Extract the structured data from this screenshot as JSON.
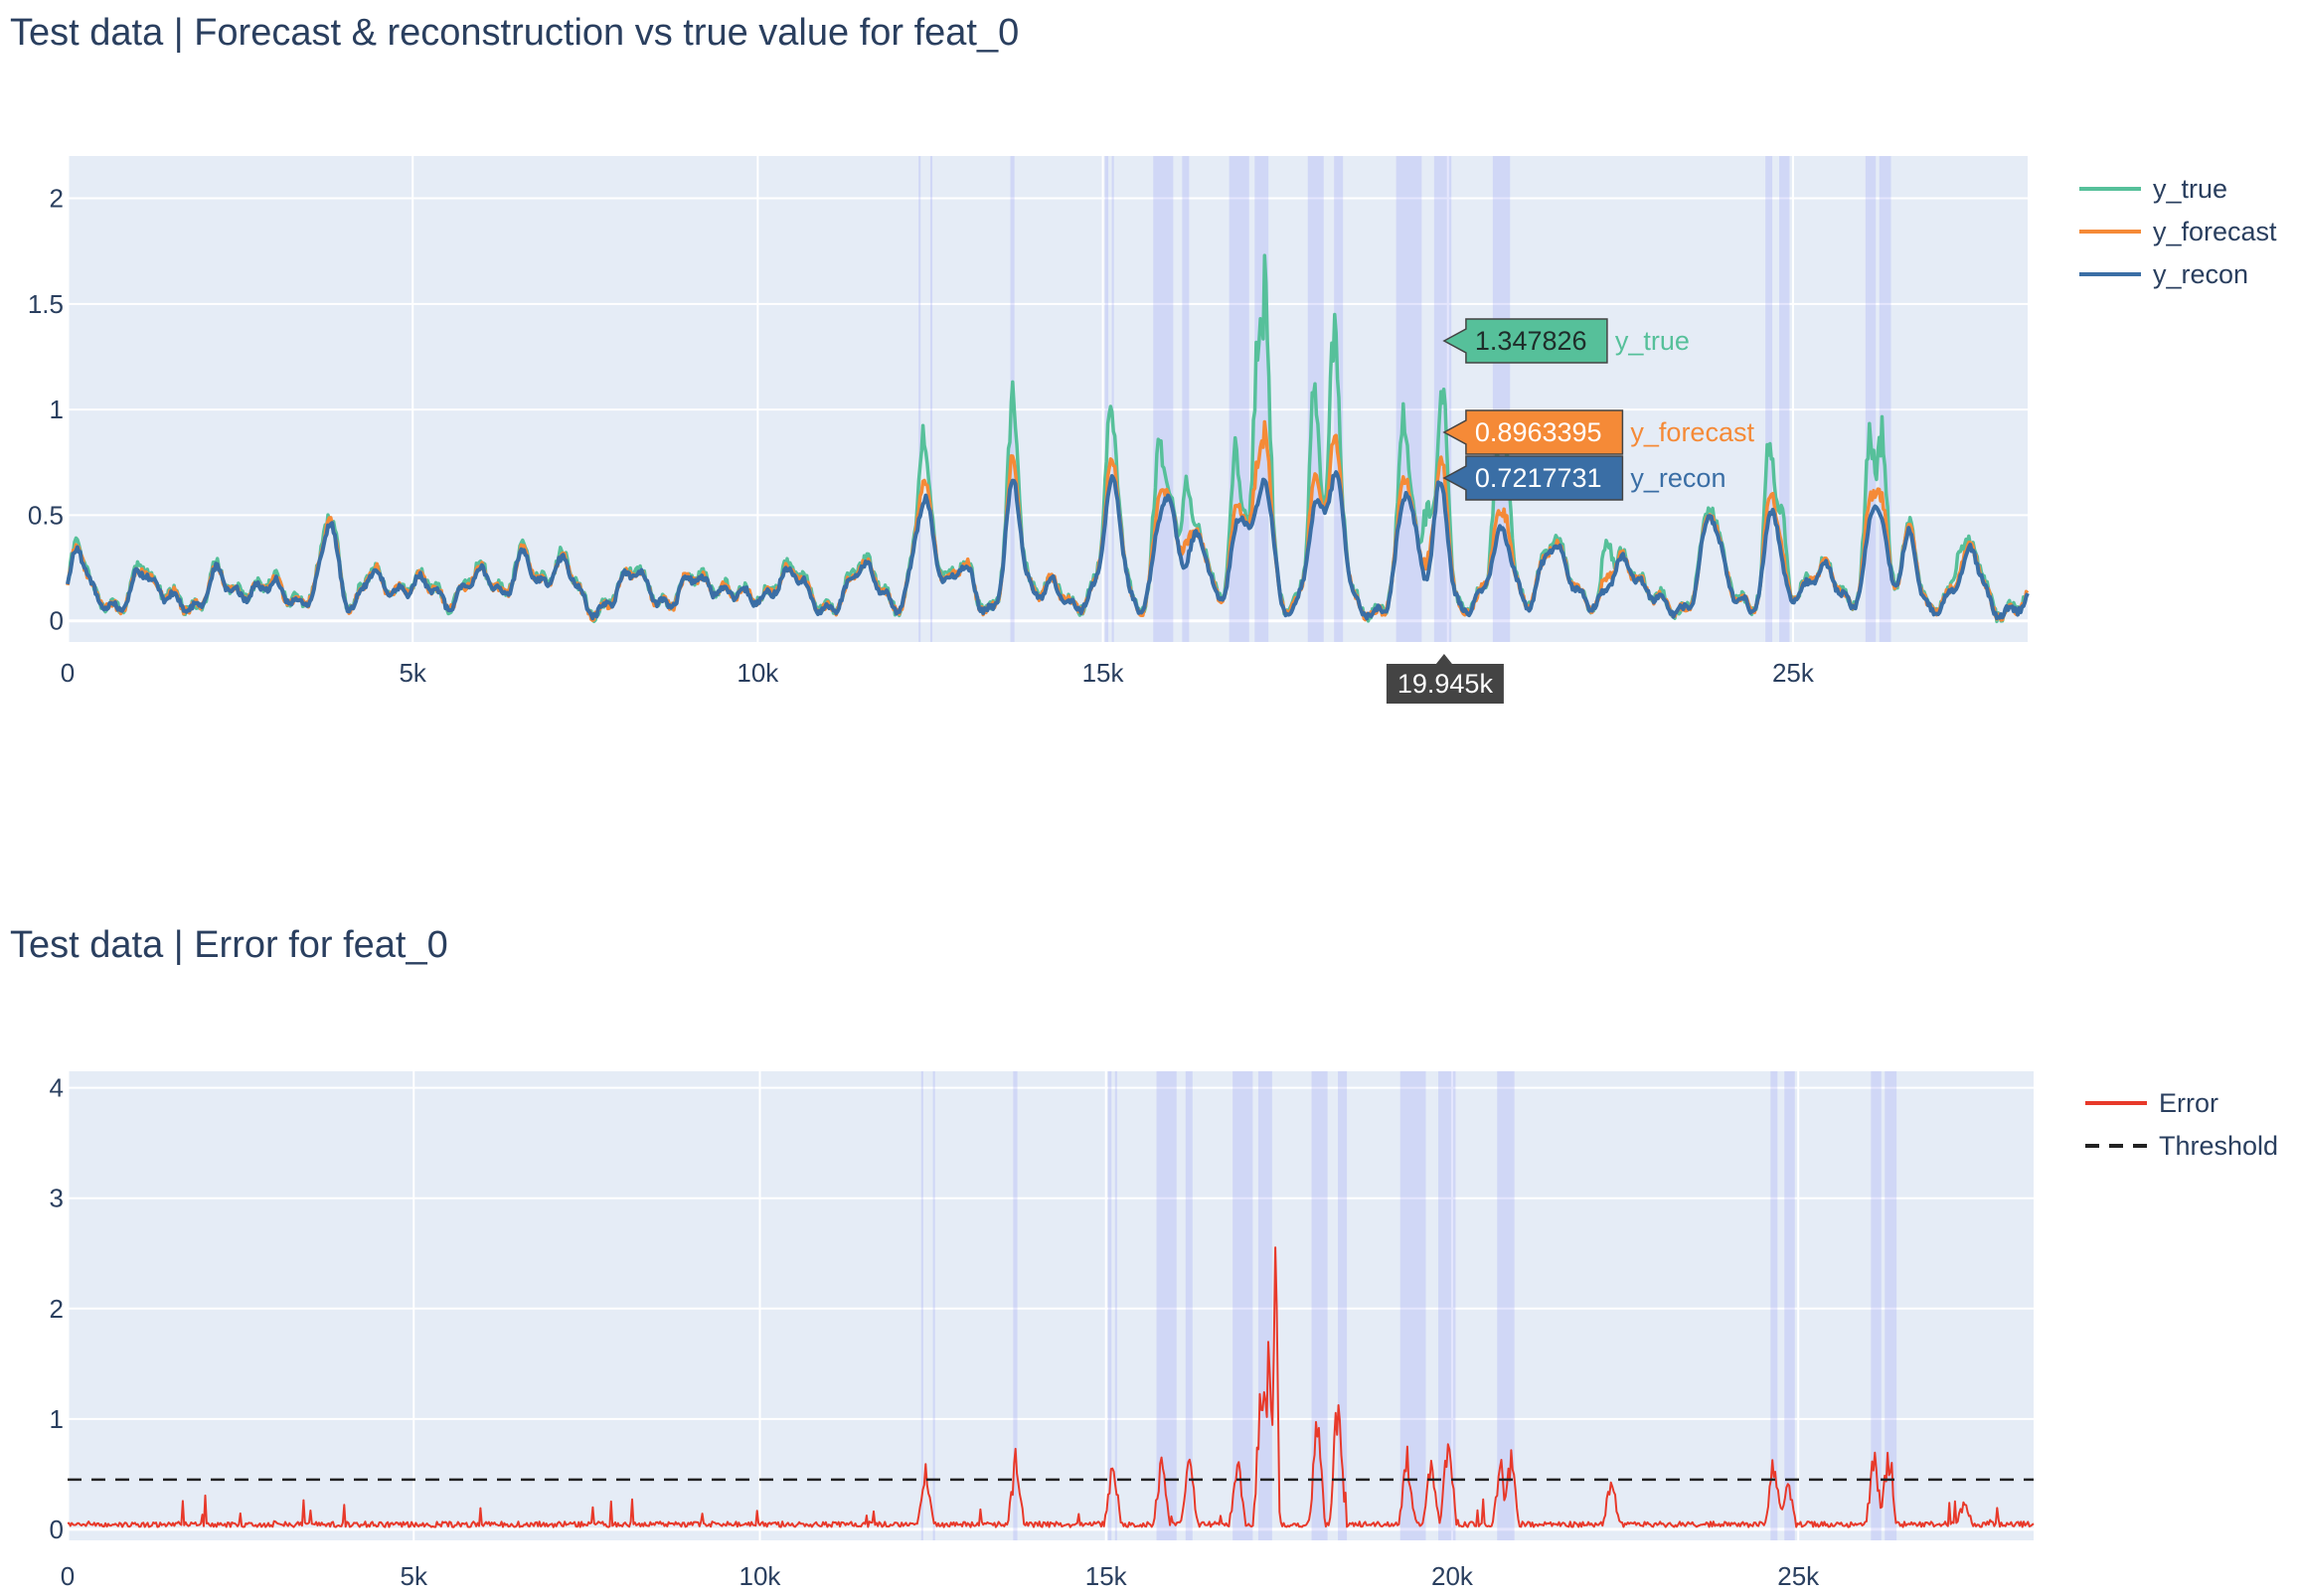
{
  "chart_data": [
    {
      "type": "line",
      "title": "Test data | Forecast & reconstruction vs true value for feat_0",
      "xlim": [
        0,
        28400
      ],
      "ylim": [
        -0.1,
        2.2
      ],
      "x_ticks": [
        0,
        5000,
        10000,
        15000,
        20000,
        25000
      ],
      "x_tick_labels": [
        "0",
        "5k",
        "10k",
        "15k",
        "",
        "25k"
      ],
      "y_ticks": [
        0,
        0.5,
        1,
        1.5,
        2
      ],
      "y_tick_labels": [
        "0",
        "0.5",
        "1",
        "1.5",
        "2"
      ],
      "grid": true,
      "legend_position": "top-right",
      "series": [
        {
          "name": "y_true",
          "color": "#56c09a"
        },
        {
          "name": "y_forecast",
          "color": "#f58a37"
        },
        {
          "name": "y_recon",
          "color": "#3a6ea5"
        }
      ],
      "anomaly_regions": [
        [
          12330,
          12360
        ],
        [
          12500,
          12530
        ],
        [
          13660,
          13720
        ],
        [
          15030,
          15080
        ],
        [
          15130,
          15160
        ],
        [
          15730,
          16020
        ],
        [
          16150,
          16250
        ],
        [
          16830,
          17120
        ],
        [
          17200,
          17400
        ],
        [
          17970,
          18200
        ],
        [
          18350,
          18480
        ],
        [
          19250,
          19620
        ],
        [
          19800,
          20050
        ],
        [
          20650,
          20900
        ],
        [
          24600,
          24700
        ],
        [
          24800,
          24950
        ],
        [
          26050,
          26200
        ],
        [
          26250,
          26420
        ]
      ],
      "hover": {
        "x_label": "19.945k",
        "values": [
          {
            "series": "y_true",
            "value": "1.347826",
            "y": 1.347826
          },
          {
            "series": "y_forecast",
            "value": "0.8963395",
            "y": 0.8963395
          },
          {
            "series": "y_recon",
            "value": "0.7217731",
            "y": 0.7217731
          }
        ]
      }
    },
    {
      "type": "line",
      "title": "Test data | Error for feat_0",
      "xlim": [
        0,
        28400
      ],
      "ylim": [
        -0.1,
        4.15
      ],
      "x_ticks": [
        0,
        5000,
        10000,
        15000,
        20000,
        25000
      ],
      "x_tick_labels": [
        "0",
        "5k",
        "10k",
        "15k",
        "20k",
        "25k"
      ],
      "y_ticks": [
        0,
        1,
        2,
        3,
        4
      ],
      "y_tick_labels": [
        "0",
        "1",
        "2",
        "3",
        "4"
      ],
      "grid": true,
      "legend_position": "top-right",
      "series": [
        {
          "name": "Error",
          "color": "#e8392a"
        },
        {
          "name": "Threshold",
          "color": "#222222",
          "dash": "dashed",
          "value": 0.45
        }
      ],
      "anomaly_regions": [
        [
          12330,
          12360
        ],
        [
          12500,
          12530
        ],
        [
          13660,
          13720
        ],
        [
          15030,
          15080
        ],
        [
          15130,
          15160
        ],
        [
          15730,
          16020
        ],
        [
          16150,
          16250
        ],
        [
          16830,
          17120
        ],
        [
          17200,
          17400
        ],
        [
          17970,
          18200
        ],
        [
          18350,
          18480
        ],
        [
          19250,
          19620
        ],
        [
          19800,
          20050
        ],
        [
          20650,
          20900
        ],
        [
          24600,
          24700
        ],
        [
          24800,
          24950
        ],
        [
          26050,
          26200
        ],
        [
          26250,
          26420
        ]
      ]
    }
  ]
}
